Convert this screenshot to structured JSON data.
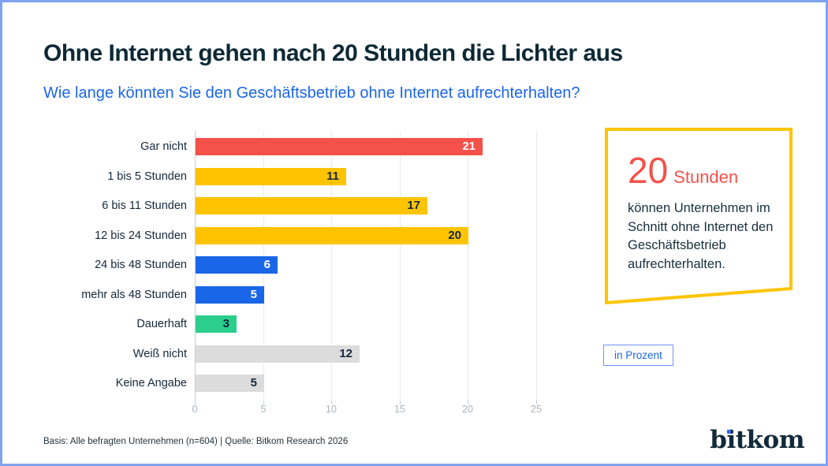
{
  "header": {
    "title": "Ohne Internet gehen nach 20 Stunden die Lichter aus",
    "subtitle": "Wie lange könnten Sie den Geschäftsbetrieb ohne Internet aufrechterhalten?"
  },
  "colors": {
    "red": "#F4514A",
    "yellow": "#FFC400",
    "blue": "#1A66E8",
    "green": "#2CCE8D",
    "gray": "#DCDCDC",
    "dark_text": "#13283C",
    "white_text": "#FFFFFF",
    "frame_blue": "#7FA3EF",
    "accent_link_blue": "#1B66E8"
  },
  "chart_data": {
    "type": "bar",
    "orientation": "horizontal",
    "categories": [
      "Gar nicht",
      "1 bis 5 Stunden",
      "6 bis 11 Stunden",
      "12 bis 24 Stunden",
      "24 bis 48 Stunden",
      "mehr als 48 Stunden",
      "Dauerhaft",
      "Weiß nicht",
      "Keine Angabe"
    ],
    "values": [
      21,
      11,
      17,
      20,
      6,
      5,
      3,
      12,
      5
    ],
    "bar_colors": [
      "#F4514A",
      "#FFC400",
      "#FFC400",
      "#FFC400",
      "#1A66E8",
      "#1A66E8",
      "#2CCE8D",
      "#DCDCDC",
      "#DCDCDC"
    ],
    "value_label_colors": [
      "#FFFFFF",
      "#13283C",
      "#13283C",
      "#13283C",
      "#FFFFFF",
      "#FFFFFF",
      "#13283C",
      "#13283C",
      "#13283C"
    ],
    "unit": "Prozent",
    "xlabel": "",
    "ylabel": "",
    "xlim": [
      0,
      25
    ],
    "x_ticks": [
      0,
      5,
      10,
      15,
      20,
      25
    ],
    "grid": true,
    "legend": false
  },
  "callout": {
    "big_number": "20",
    "big_unit": "Stunden",
    "body": "können Unternehmen im Schnitt ohne Internet den Geschäftsbetrieb aufrechterhalten."
  },
  "badge": {
    "label": "in Prozent"
  },
  "footer": {
    "source": "Basis: Alle befragten Unternehmen (n=604) | Quelle: Bitkom Research 2026"
  },
  "logo": {
    "text": "bitkom"
  }
}
